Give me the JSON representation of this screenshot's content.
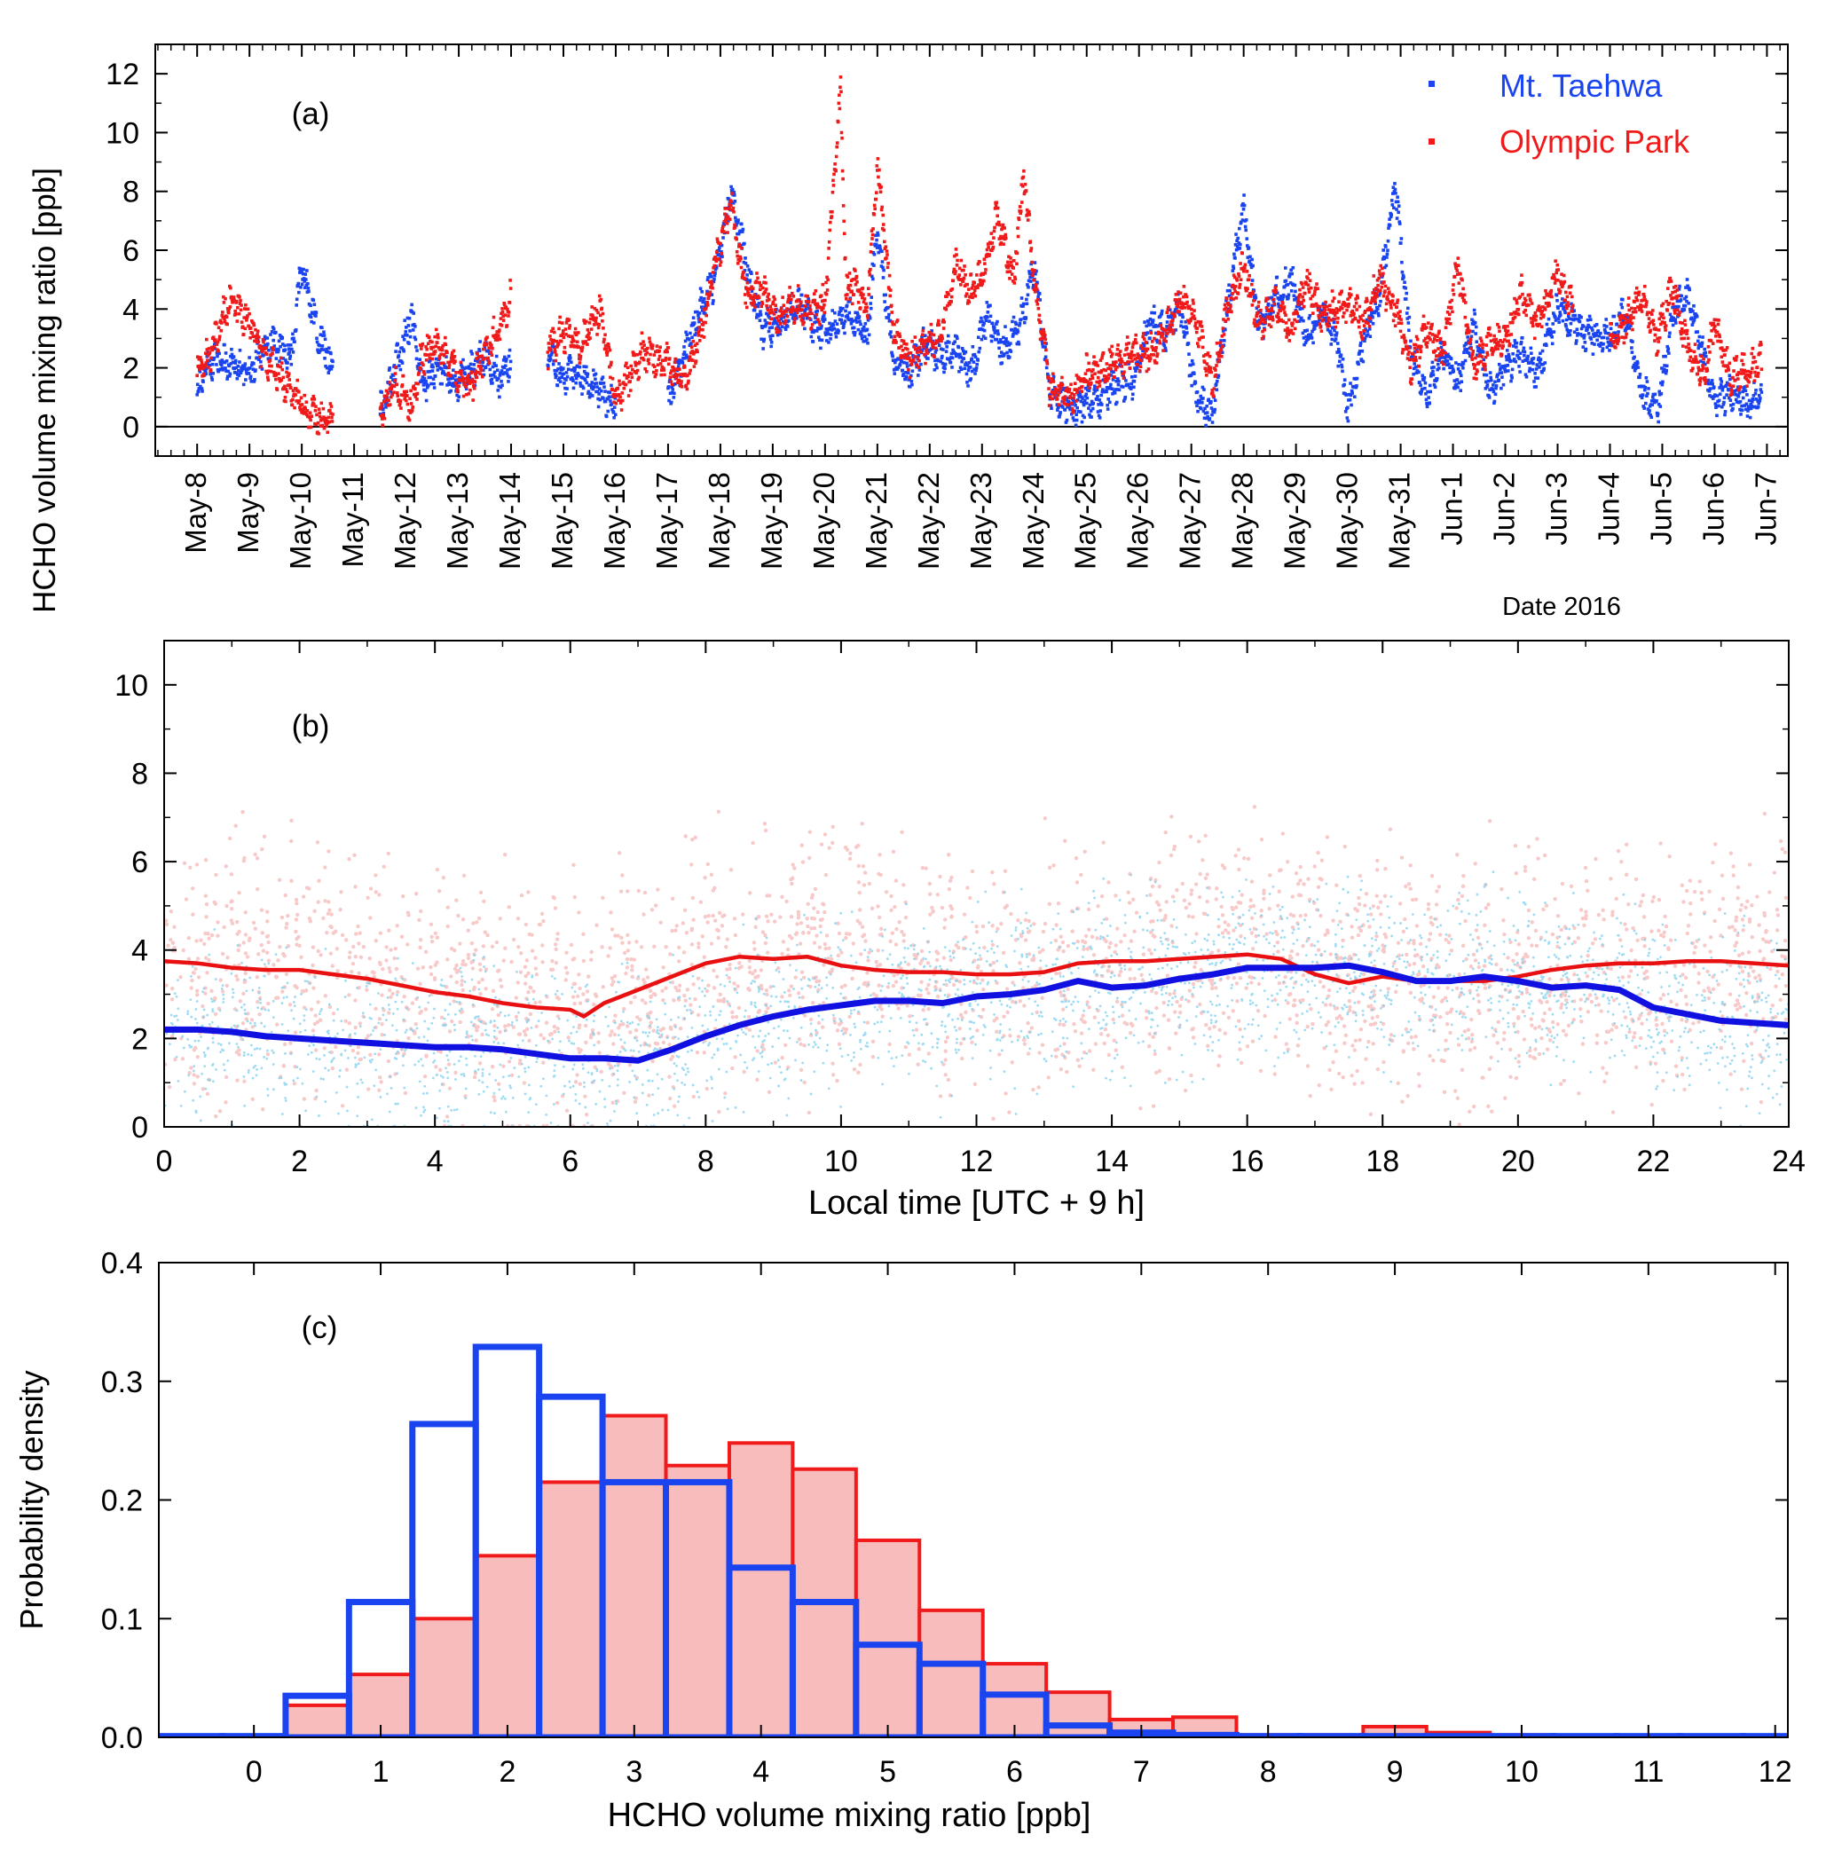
{
  "figure": {
    "shared_ylabel": "HCHO volume mixing ratio [ppb]",
    "colors": {
      "taehwa": "#1a44f0",
      "olympic": "#f01a1a",
      "taehwa_light": "#7fd0ee",
      "olympic_light": "#f8c4c4",
      "mean_taehwa": "#1010e0",
      "mean_olympic": "#e81010",
      "hist_fill": "#f9bcbc"
    }
  },
  "chart_data": [
    {
      "panel": "a",
      "panel_label": "(a)",
      "type": "scatter",
      "title": "",
      "xlabel": "Date 2016",
      "ylabel": "HCHO volume mixing ratio [ppb]",
      "xlim": [
        7.2,
        38.4
      ],
      "ylim": [
        -1,
        13
      ],
      "yticks": [
        0,
        2,
        4,
        6,
        8,
        10,
        12
      ],
      "date_ticks": [
        "May-8",
        "May-9",
        "May-10",
        "May-11",
        "May-12",
        "May-13",
        "May-14",
        "May-15",
        "May-16",
        "May-17",
        "May-18",
        "May-19",
        "May-20",
        "May-21",
        "May-22",
        "May-23",
        "May-24",
        "May-25",
        "May-26",
        "May-27",
        "May-28",
        "May-29",
        "May-30",
        "May-31",
        "Jun-1",
        "Jun-2",
        "Jun-3",
        "Jun-4",
        "Jun-5",
        "Jun-6",
        "Jun-7"
      ],
      "x_unit": "day of May 2016 (32 = Jun-1)",
      "legend": [
        "Mt. Taehwa",
        "Olympic Park"
      ],
      "legend_position": "top-right",
      "series": [
        {
          "name": "Mt. Taehwa",
          "x": [
            8.0,
            8.3,
            8.6,
            9.0,
            9.4,
            9.8,
            10.0,
            10.3,
            10.6,
            11.5,
            11.8,
            12.1,
            12.3,
            12.6,
            12.9,
            13.2,
            13.5,
            13.8,
            14.0,
            14.7,
            15.0,
            15.3,
            15.7,
            16.0,
            17.0,
            17.3,
            17.6,
            17.9,
            18.2,
            18.5,
            18.8,
            19.1,
            19.5,
            19.9,
            20.2,
            20.5,
            20.8,
            21.0,
            21.3,
            21.6,
            21.9,
            22.2,
            22.5,
            22.8,
            23.1,
            23.4,
            23.7,
            24.0,
            24.3,
            24.7,
            25.0,
            25.3,
            25.6,
            25.9,
            26.2,
            26.5,
            26.8,
            27.1,
            27.4,
            27.7,
            28.0,
            28.3,
            28.6,
            28.9,
            29.2,
            29.5,
            29.8,
            30.0,
            30.3,
            30.6,
            30.9,
            31.2,
            31.5,
            31.8,
            32.1,
            32.4,
            32.7,
            33.0,
            33.3,
            33.6,
            34.0,
            34.5,
            35.0,
            35.3,
            35.6,
            35.9,
            36.2,
            36.5,
            36.8,
            37.0,
            37.3,
            37.6,
            37.9
          ],
          "y": [
            1.4,
            2.3,
            2.2,
            1.9,
            2.9,
            2.4,
            5.5,
            3.2,
            2.0,
            0.5,
            2.0,
            3.8,
            1.3,
            2.0,
            1.4,
            1.9,
            2.4,
            1.6,
            2.3,
            2.6,
            1.6,
            1.9,
            1.1,
            0.8,
            0.9,
            2.4,
            4.0,
            5.0,
            8.0,
            5.5,
            3.3,
            3.5,
            4.2,
            3.2,
            3.5,
            3.9,
            2.9,
            6.8,
            2.3,
            1.8,
            2.8,
            2.4,
            2.5,
            1.9,
            3.8,
            2.6,
            3.3,
            5.5,
            1.2,
            0.6,
            0.8,
            1.0,
            1.5,
            1.6,
            3.6,
            3.2,
            4.0,
            1.0,
            0.4,
            4.2,
            7.5,
            3.3,
            4.4,
            5.0,
            3.0,
            4.0,
            2.8,
            0.5,
            3.0,
            4.5,
            8.2,
            2.5,
            1.0,
            2.5,
            1.5,
            3.5,
            1.2,
            2.0,
            2.5,
            1.8,
            4.0,
            3.2,
            3.0,
            3.9,
            1.2,
            0.5,
            3.8,
            4.5,
            2.3,
            0.8,
            1.2,
            0.8,
            1.0
          ]
        },
        {
          "name": "Olympic Park",
          "x": [
            8.0,
            8.3,
            8.6,
            9.0,
            9.3,
            9.6,
            10.0,
            10.3,
            10.6,
            11.5,
            11.8,
            12.1,
            12.3,
            12.6,
            12.9,
            13.2,
            13.5,
            13.8,
            14.0,
            14.7,
            15.0,
            15.3,
            15.7,
            16.0,
            16.5,
            17.0,
            17.3,
            17.6,
            17.9,
            18.2,
            18.5,
            18.8,
            19.1,
            19.4,
            19.7,
            20.0,
            20.3,
            20.4,
            20.6,
            20.8,
            21.0,
            21.3,
            21.6,
            21.9,
            22.2,
            22.5,
            22.8,
            23.0,
            23.3,
            23.6,
            23.8,
            24.0,
            24.3,
            24.7,
            25.0,
            25.3,
            25.6,
            25.8,
            26.2,
            26.5,
            26.8,
            27.1,
            27.4,
            27.7,
            28.0,
            28.3,
            28.6,
            28.9,
            29.2,
            29.5,
            29.8,
            30.0,
            30.3,
            30.6,
            30.9,
            31.2,
            31.5,
            31.8,
            32.1,
            32.4,
            32.7,
            33.0,
            33.3,
            33.6,
            34.0,
            34.3,
            35.0,
            35.3,
            35.6,
            35.9,
            36.2,
            36.5,
            36.8,
            37.0,
            37.3,
            37.6,
            37.9
          ],
          "y": [
            1.8,
            2.6,
            4.3,
            3.6,
            2.3,
            1.7,
            0.8,
            0.3,
            0.2,
            0.4,
            1.5,
            0.6,
            2.4,
            2.8,
            2.0,
            1.2,
            2.5,
            3.5,
            4.5,
            2.6,
            3.2,
            2.7,
            4.0,
            0.8,
            2.5,
            2.2,
            1.6,
            3.0,
            5.5,
            7.5,
            4.5,
            4.6,
            3.7,
            4.2,
            3.9,
            4.2,
            11.5,
            4.6,
            5.0,
            3.8,
            9.0,
            3.3,
            2.3,
            2.8,
            3.0,
            5.5,
            4.5,
            5.2,
            7.2,
            5.0,
            8.5,
            5.0,
            1.2,
            1.0,
            1.8,
            2.0,
            2.2,
            2.4,
            2.5,
            3.2,
            4.4,
            3.5,
            1.5,
            4.0,
            5.5,
            3.5,
            4.2,
            3.2,
            5.0,
            3.8,
            4.0,
            4.2,
            3.5,
            5.0,
            4.0,
            2.1,
            3.4,
            2.4,
            5.5,
            2.0,
            2.8,
            3.0,
            4.5,
            3.5,
            5.2,
            4.0,
            3.0,
            3.5,
            4.5,
            3.0,
            4.8,
            2.5,
            1.8,
            3.5,
            1.7,
            2.0,
            2.2
          ]
        }
      ]
    },
    {
      "panel": "b",
      "panel_label": "(b)",
      "type": "line",
      "title": "",
      "xlabel": "Local time [UTC + 9 h]",
      "ylabel": "HCHO volume mixing ratio [ppb]",
      "xlim": [
        0,
        24
      ],
      "ylim": [
        0,
        11
      ],
      "xticks": [
        0,
        2,
        4,
        6,
        8,
        10,
        12,
        14,
        16,
        18,
        20,
        22,
        24
      ],
      "yticks": [
        0,
        2,
        4,
        6,
        8,
        10
      ],
      "x": [
        0,
        0.5,
        1,
        1.5,
        2,
        2.5,
        3,
        3.5,
        4,
        4.5,
        5,
        5.5,
        6,
        6.2,
        6.5,
        7,
        7.5,
        8,
        8.5,
        9,
        9.5,
        10,
        10.5,
        11,
        11.5,
        12,
        12.5,
        13,
        13.5,
        14,
        14.5,
        15,
        15.5,
        16,
        16.5,
        17,
        17.5,
        18,
        18.5,
        19,
        19.5,
        20,
        20.5,
        21,
        21.5,
        22,
        22.5,
        23,
        23.5,
        24
      ],
      "series": [
        {
          "name": "Mt. Taehwa",
          "y": [
            2.2,
            2.2,
            2.15,
            2.05,
            2.0,
            1.95,
            1.9,
            1.85,
            1.8,
            1.8,
            1.75,
            1.65,
            1.55,
            1.55,
            1.55,
            1.5,
            1.75,
            2.05,
            2.3,
            2.5,
            2.65,
            2.75,
            2.85,
            2.85,
            2.8,
            2.95,
            3.0,
            3.1,
            3.3,
            3.15,
            3.2,
            3.35,
            3.45,
            3.6,
            3.6,
            3.6,
            3.65,
            3.5,
            3.3,
            3.3,
            3.4,
            3.3,
            3.15,
            3.2,
            3.1,
            2.7,
            2.55,
            2.4,
            2.35,
            2.3
          ]
        },
        {
          "name": "Olympic Park",
          "y": [
            3.75,
            3.7,
            3.6,
            3.55,
            3.55,
            3.45,
            3.35,
            3.2,
            3.05,
            2.95,
            2.8,
            2.7,
            2.65,
            2.5,
            2.8,
            3.1,
            3.4,
            3.7,
            3.85,
            3.8,
            3.85,
            3.65,
            3.55,
            3.5,
            3.5,
            3.45,
            3.45,
            3.5,
            3.7,
            3.75,
            3.75,
            3.8,
            3.85,
            3.9,
            3.8,
            3.45,
            3.25,
            3.4,
            3.3,
            3.3,
            3.3,
            3.4,
            3.55,
            3.65,
            3.7,
            3.7,
            3.75,
            3.75,
            3.7,
            3.65
          ]
        }
      ]
    },
    {
      "panel": "c",
      "panel_label": "(c)",
      "type": "bar",
      "title": "",
      "xlabel": "HCHO volume mixing ratio [ppb]",
      "ylabel": "Probability density",
      "xlim": [
        -0.75,
        12.1
      ],
      "ylim": [
        0,
        0.4
      ],
      "xticks": [
        0,
        1,
        2,
        3,
        4,
        5,
        6,
        7,
        8,
        9,
        10,
        11,
        12
      ],
      "yticks": [
        0.0,
        0.1,
        0.2,
        0.3,
        0.4
      ],
      "ytick_labels": [
        "0.0",
        "0.1",
        "0.2",
        "0.3",
        "0.4"
      ],
      "bin_edges": [
        -0.75,
        -0.25,
        0.25,
        0.75,
        1.25,
        1.75,
        2.25,
        2.75,
        3.25,
        3.75,
        4.25,
        4.75,
        5.25,
        5.75,
        6.25,
        6.75,
        7.25,
        7.75,
        8.25,
        8.75,
        9.25,
        9.75,
        10.25,
        10.75,
        11.25,
        11.75,
        12.1
      ],
      "series": [
        {
          "name": "Olympic Park",
          "values": [
            0.001,
            0.001,
            0.027,
            0.053,
            0.1,
            0.153,
            0.215,
            0.271,
            0.229,
            0.248,
            0.226,
            0.166,
            0.107,
            0.062,
            0.038,
            0.015,
            0.017,
            0.002,
            0.002,
            0.009,
            0.004,
            0.002,
            0.001,
            0.001,
            0.001,
            0.001
          ]
        },
        {
          "name": "Mt. Taehwa",
          "values": [
            0.001,
            0.001,
            0.035,
            0.114,
            0.264,
            0.329,
            0.287,
            0.215,
            0.215,
            0.143,
            0.114,
            0.078,
            0.062,
            0.036,
            0.01,
            0.004,
            0.002,
            0.001,
            0.001,
            0.001,
            0.001,
            0.001,
            0.001,
            0.001,
            0.001,
            0.001
          ]
        }
      ]
    }
  ]
}
